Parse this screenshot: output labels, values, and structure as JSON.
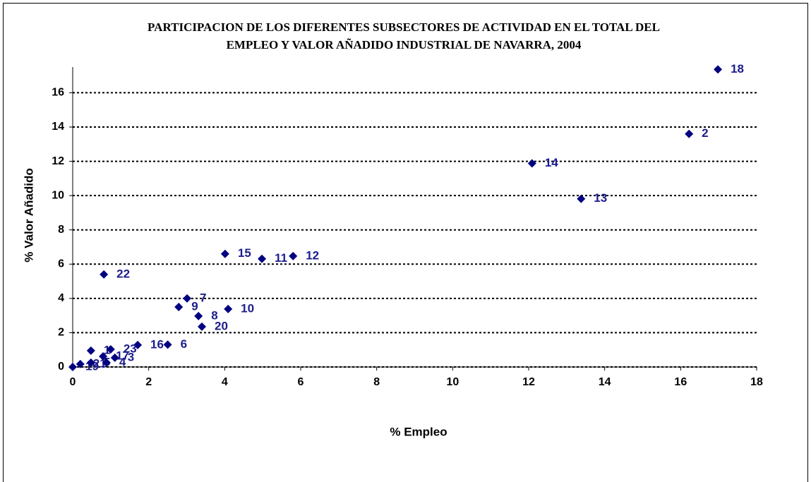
{
  "chart_data": {
    "type": "scatter",
    "title": [
      "PARTICIPACION DE LOS DIFERENTES SUBSECTORES DE ACTIVIDAD EN EL TOTAL DEL",
      "EMPLEO Y VALOR AÑADIDO INDUSTRIAL DE NAVARRA, 2004"
    ],
    "x_label": "% Empleo",
    "y_label": "% Valor Añadido",
    "xlim": [
      0,
      18
    ],
    "xticks": [
      0,
      2,
      4,
      6,
      8,
      10,
      12,
      14,
      16,
      18
    ],
    "ylim": [
      0,
      17.5
    ],
    "yticks": [
      0,
      2,
      4,
      6,
      8,
      10,
      12,
      14,
      16
    ],
    "grid": true,
    "color": "#000080",
    "series": [
      {
        "color": "#000080",
        "point_labels": [
          "18",
          "2",
          "14",
          "13",
          "15",
          "11",
          "12",
          "22",
          "7",
          "9",
          "8",
          "10",
          "20",
          "16",
          "6",
          "19",
          "21",
          "5",
          "1",
          "4",
          "17",
          "23",
          "3"
        ],
        "x": [
          16.98,
          16.22,
          12.09,
          13.38,
          4.01,
          4.98,
          5.8,
          0.82,
          3.01,
          2.79,
          3.31,
          4.09,
          3.4,
          1.71,
          2.5,
          0,
          0.2,
          0.48,
          0.48,
          0.89,
          0.8,
          1.0,
          1.11
        ],
        "values": [
          17.36,
          13.6,
          11.88,
          9.81,
          6.6,
          6.31,
          6.47,
          5.4,
          4.0,
          3.5,
          2.97,
          3.38,
          2.35,
          1.28,
          1.3,
          0,
          0.17,
          0.25,
          0.95,
          0.25,
          0.62,
          1.03,
          0.54
        ]
      }
    ]
  }
}
